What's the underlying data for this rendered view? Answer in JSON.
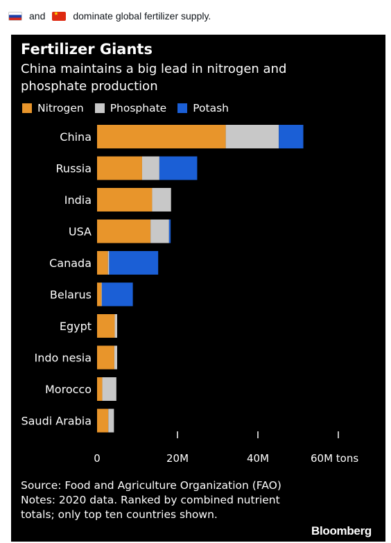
{
  "caption": {
    "text_and": "and",
    "text_rest": "dominate global fertilizer supply.",
    "flags": [
      "russia-flag",
      "china-flag"
    ]
  },
  "brand": "Bloomberg",
  "source_line": "Source: Food and Agriculture Organization (FAO)",
  "notes_line": "Notes: 2020 data. Ranked by combined nutrient totals; only top ten countries shown.",
  "colors": {
    "nitrogen": "#e8952b",
    "phosphate": "#c8c8c8",
    "potash": "#1b5fd6",
    "background": "#000000"
  },
  "chart_data": {
    "type": "bar",
    "orientation": "horizontal",
    "stacked": true,
    "title": "Fertilizer Giants",
    "subtitle": "China maintains a big lead in nitrogen and phosphate production",
    "categories": [
      "China",
      "Russia",
      "India",
      "USA",
      "Canada",
      "Belarus",
      "Egypt",
      "Indo nesia",
      "Morocco",
      "Saudi Arabia"
    ],
    "series": [
      {
        "name": "Nitrogen",
        "values": [
          32.0,
          11.2,
          13.7,
          13.3,
          2.7,
          1.1,
          4.4,
          4.3,
          1.3,
          2.8
        ]
      },
      {
        "name": "Phosphate",
        "values": [
          13.2,
          4.3,
          4.7,
          4.6,
          0.3,
          0.1,
          0.6,
          0.7,
          3.5,
          1.4
        ]
      },
      {
        "name": "Potash",
        "values": [
          6.1,
          9.4,
          0.0,
          0.4,
          12.2,
          7.7,
          0.0,
          0.0,
          0.0,
          0.0
        ]
      }
    ],
    "x_ticks": [
      {
        "value": 0,
        "label": "0"
      },
      {
        "value": 20,
        "label": "20M"
      },
      {
        "value": 40,
        "label": "40M"
      },
      {
        "value": 60,
        "label": "60M tons"
      }
    ],
    "xlim": [
      0,
      60
    ],
    "legend_position": "top-left",
    "grid": false
  }
}
